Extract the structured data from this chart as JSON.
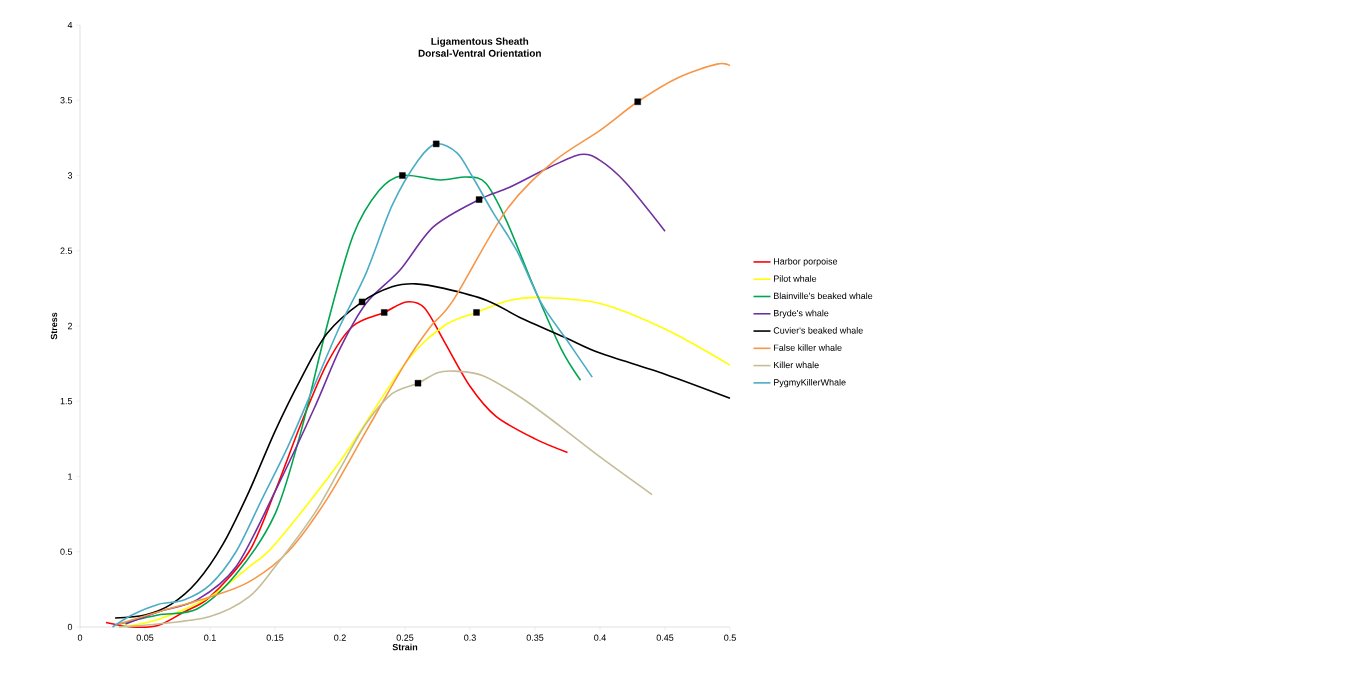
{
  "chart_data": {
    "type": "line",
    "title": "Ligamentous Sheath",
    "subtitle": "Dorsal-Ventral Orientation",
    "xlabel": "Strain",
    "ylabel": "Stress",
    "xlim": [
      0,
      0.5
    ],
    "ylim": [
      0,
      4
    ],
    "xticks": [
      0,
      0.05,
      0.1,
      0.15,
      0.2,
      0.25,
      0.3,
      0.35,
      0.4,
      0.45,
      0.5
    ],
    "yticks": [
      0,
      0.5,
      1,
      1.5,
      2,
      2.5,
      3,
      3.5,
      4
    ],
    "grid": false,
    "legend": "right",
    "marker": "none",
    "line_style": "solid",
    "series": [
      {
        "name": "Harbor porpoise",
        "color": "#ff0000",
        "x": [
          0.02,
          0.04,
          0.06,
          0.08,
          0.1,
          0.13,
          0.15,
          0.17,
          0.19,
          0.21,
          0.234,
          0.251,
          0.265,
          0.28,
          0.3,
          0.32,
          0.35,
          0.375
        ],
        "values": [
          0.03,
          0.0,
          0.01,
          0.1,
          0.2,
          0.5,
          0.9,
          1.35,
          1.75,
          2.0,
          2.09,
          2.16,
          2.12,
          1.9,
          1.6,
          1.4,
          1.25,
          1.16
        ]
      },
      {
        "name": "Pilot whale",
        "color": "#ffff00",
        "x": [
          0.03,
          0.06,
          0.1,
          0.13,
          0.15,
          0.2,
          0.25,
          0.28,
          0.305,
          0.33,
          0.354,
          0.4,
          0.45,
          0.5
        ],
        "values": [
          0.0,
          0.05,
          0.2,
          0.4,
          0.55,
          1.1,
          1.75,
          2.0,
          2.09,
          2.17,
          2.19,
          2.15,
          1.98,
          1.74
        ]
      },
      {
        "name": "Blainville's beaked whale",
        "color": "#00a550",
        "x": [
          0.03,
          0.06,
          0.09,
          0.12,
          0.15,
          0.17,
          0.19,
          0.21,
          0.23,
          0.248,
          0.277,
          0.297,
          0.312,
          0.328,
          0.349,
          0.37,
          0.385
        ],
        "values": [
          0.02,
          0.08,
          0.12,
          0.35,
          0.75,
          1.3,
          2.0,
          2.6,
          2.9,
          3.0,
          2.97,
          2.99,
          2.95,
          2.7,
          2.26,
          1.85,
          1.64
        ]
      },
      {
        "name": "Bryde's whale",
        "color": "#7030a0",
        "x": [
          0.035,
          0.06,
          0.09,
          0.12,
          0.15,
          0.18,
          0.2,
          0.22,
          0.246,
          0.272,
          0.307,
          0.33,
          0.36,
          0.385,
          0.4,
          0.42,
          0.45
        ],
        "values": [
          0.02,
          0.1,
          0.18,
          0.4,
          0.9,
          1.45,
          1.85,
          2.15,
          2.37,
          2.66,
          2.84,
          2.92,
          3.05,
          3.14,
          3.1,
          2.95,
          2.63
        ]
      },
      {
        "name": "Cuvier's beaked whale",
        "color": "#000000",
        "x": [
          0.027,
          0.05,
          0.07,
          0.09,
          0.11,
          0.13,
          0.15,
          0.17,
          0.19,
          0.217,
          0.24,
          0.258,
          0.28,
          0.313,
          0.34,
          0.374,
          0.4,
          0.45,
          0.5
        ],
        "values": [
          0.06,
          0.08,
          0.15,
          0.3,
          0.55,
          0.9,
          1.3,
          1.65,
          1.95,
          2.16,
          2.26,
          2.28,
          2.25,
          2.17,
          2.05,
          1.92,
          1.82,
          1.68,
          1.52
        ]
      },
      {
        "name": "False killer whale",
        "color": "#f79646",
        "x": [
          0.03,
          0.06,
          0.1,
          0.13,
          0.16,
          0.19,
          0.22,
          0.25,
          0.27,
          0.287,
          0.328,
          0.364,
          0.4,
          0.429,
          0.46,
          0.49,
          0.5
        ],
        "values": [
          0.02,
          0.1,
          0.2,
          0.3,
          0.5,
          0.85,
          1.3,
          1.75,
          2.0,
          2.17,
          2.77,
          3.09,
          3.3,
          3.49,
          3.65,
          3.74,
          3.73
        ]
      },
      {
        "name": "Killer whale",
        "color": "#c4bd97",
        "x": [
          0.03,
          0.06,
          0.1,
          0.13,
          0.15,
          0.18,
          0.2,
          0.22,
          0.24,
          0.26,
          0.275,
          0.288,
          0.31,
          0.34,
          0.37,
          0.4,
          0.44
        ],
        "values": [
          0.0,
          0.02,
          0.07,
          0.2,
          0.4,
          0.75,
          1.05,
          1.35,
          1.55,
          1.62,
          1.69,
          1.7,
          1.67,
          1.52,
          1.33,
          1.13,
          0.88
        ]
      },
      {
        "name": "PygmyKillerWhale",
        "color": "#4bacc6",
        "x": [
          0.025,
          0.04,
          0.06,
          0.08,
          0.1,
          0.12,
          0.14,
          0.16,
          0.18,
          0.2,
          0.22,
          0.24,
          0.26,
          0.274,
          0.29,
          0.302,
          0.318,
          0.336,
          0.355,
          0.375,
          0.394
        ],
        "values": [
          0.0,
          0.08,
          0.15,
          0.18,
          0.28,
          0.5,
          0.85,
          1.2,
          1.6,
          2.0,
          2.35,
          2.8,
          3.1,
          3.21,
          3.15,
          2.99,
          2.75,
          2.5,
          2.15,
          1.9,
          1.66
        ]
      },
      {
        "type": "scatter",
        "marker": "square",
        "color": "#000000",
        "x": [
          0.234,
          0.305,
          0.248,
          0.307,
          0.217,
          0.429,
          0.26,
          0.274
        ],
        "values": [
          2.09,
          2.09,
          3.0,
          2.84,
          2.16,
          3.49,
          1.62,
          3.21
        ]
      }
    ]
  }
}
